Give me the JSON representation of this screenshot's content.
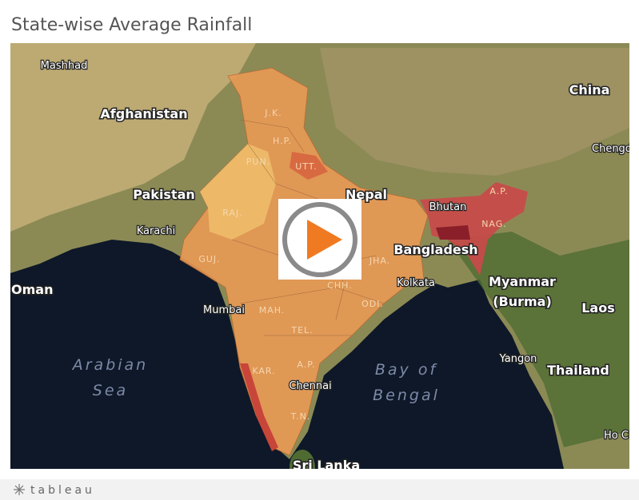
{
  "header": {
    "title": "State-wise Average Rainfall"
  },
  "map": {
    "places": [
      "Mashhad",
      "Afghanistan",
      "Pakistan",
      "Karachi",
      "Oman",
      "Mumbai",
      "Kolkata",
      "Chennai",
      "Nepal",
      "Bhutan",
      "Bangladesh",
      "China",
      "Chengd",
      "Yangon",
      "Laos",
      "Thailand",
      "Ho C",
      "Sri Lanka"
    ],
    "myanmar": [
      "Myanmar",
      "(Burma)"
    ],
    "arabian_sea": [
      "Arabian",
      "Sea"
    ],
    "bay_of_bengal": [
      "Bay of",
      "Bengal"
    ],
    "states": [
      "J.K.",
      "H.P.",
      "PUN.",
      "UTT.",
      "RAJ.",
      "GUJ.",
      "MAH.",
      "CHH.",
      "JHA.",
      "ODI.",
      "TEL.",
      "A.P.",
      "KAR.",
      "T.N.",
      "A.P.",
      "NAG."
    ]
  },
  "footer": {
    "brand": "tableau"
  }
}
